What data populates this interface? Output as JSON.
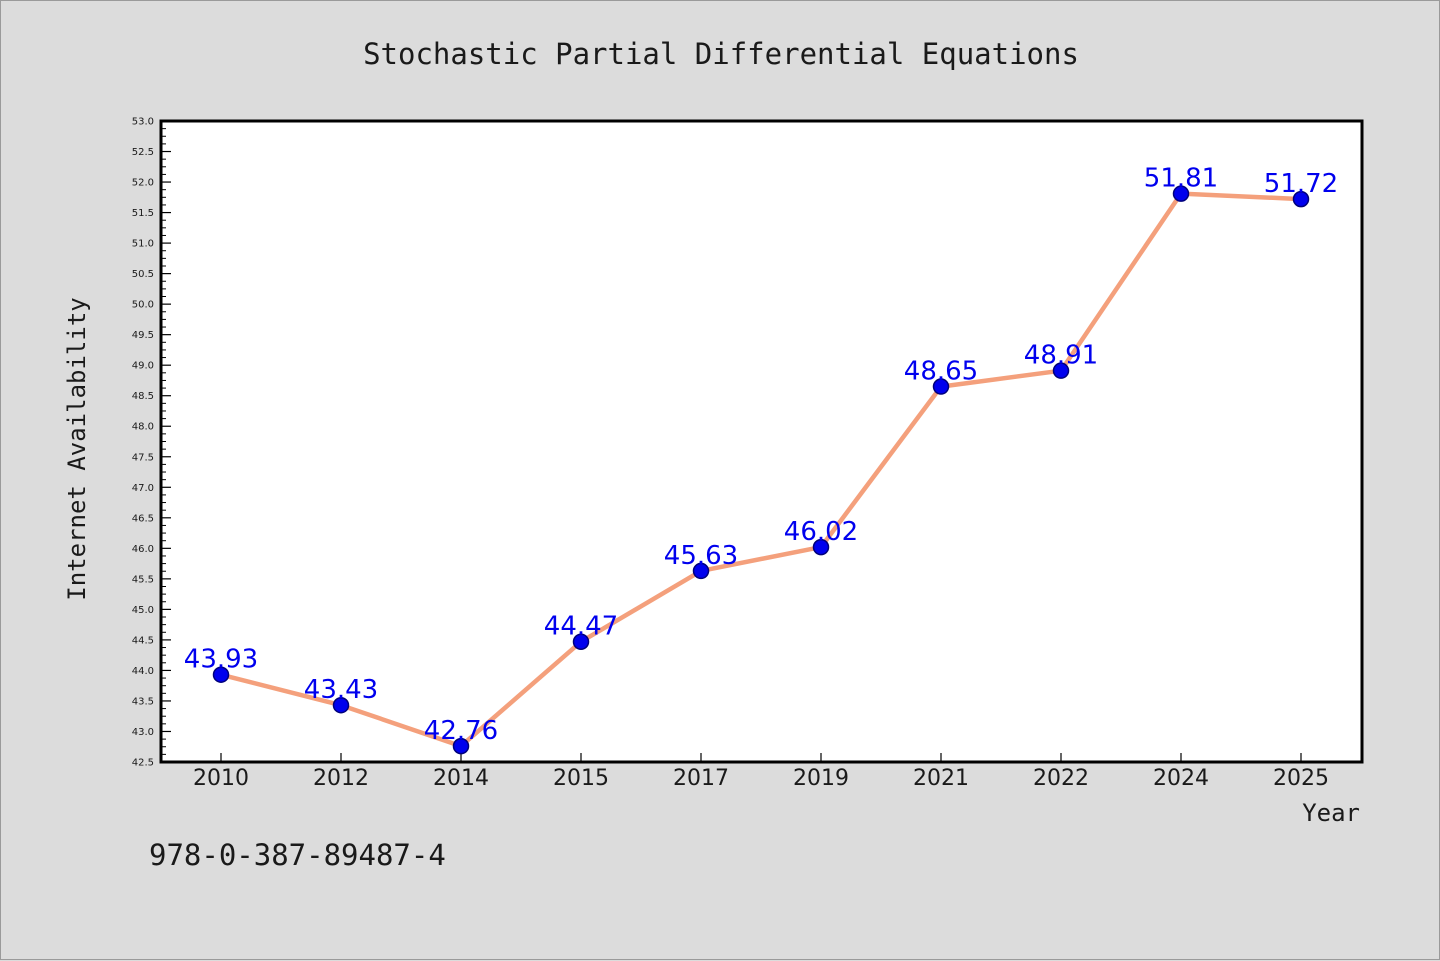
{
  "chart_data": {
    "type": "line",
    "title": "Stochastic Partial Differential Equations",
    "xlabel": "Year",
    "ylabel": "Internet Availability",
    "categories": [
      "2010",
      "2012",
      "2014",
      "2015",
      "2017",
      "2019",
      "2021",
      "2022",
      "2024",
      "2025"
    ],
    "series": [
      {
        "values": [
          43.93,
          43.43,
          42.76,
          44.47,
          45.63,
          46.02,
          48.65,
          48.91,
          51.81,
          51.72
        ],
        "data_labels": [
          "43.93",
          "43.43",
          "42.76",
          "44.47",
          "45.63",
          "46.02",
          "48.65",
          "48.91",
          "51.81",
          "51.72"
        ]
      }
    ],
    "ylim": [
      42.5,
      53.0
    ],
    "yticks": [
      "42.5",
      "43.0",
      "43.5",
      "44.0",
      "44.5",
      "45.0",
      "45.5",
      "46.0",
      "46.5",
      "47.0",
      "47.5",
      "48.0",
      "48.5",
      "49.0",
      "49.5",
      "50.0",
      "50.5",
      "51.0",
      "51.5",
      "52.0",
      "52.5",
      "53.0"
    ],
    "grid": false,
    "colors": {
      "line": "#f4a07c",
      "marker": "#0000ee",
      "data_label": "#0000ee",
      "plot_bg": "#ffffff",
      "page_bg": "#dcdcdc"
    }
  },
  "footer": {
    "isbn": "978-0-387-89487-4"
  }
}
